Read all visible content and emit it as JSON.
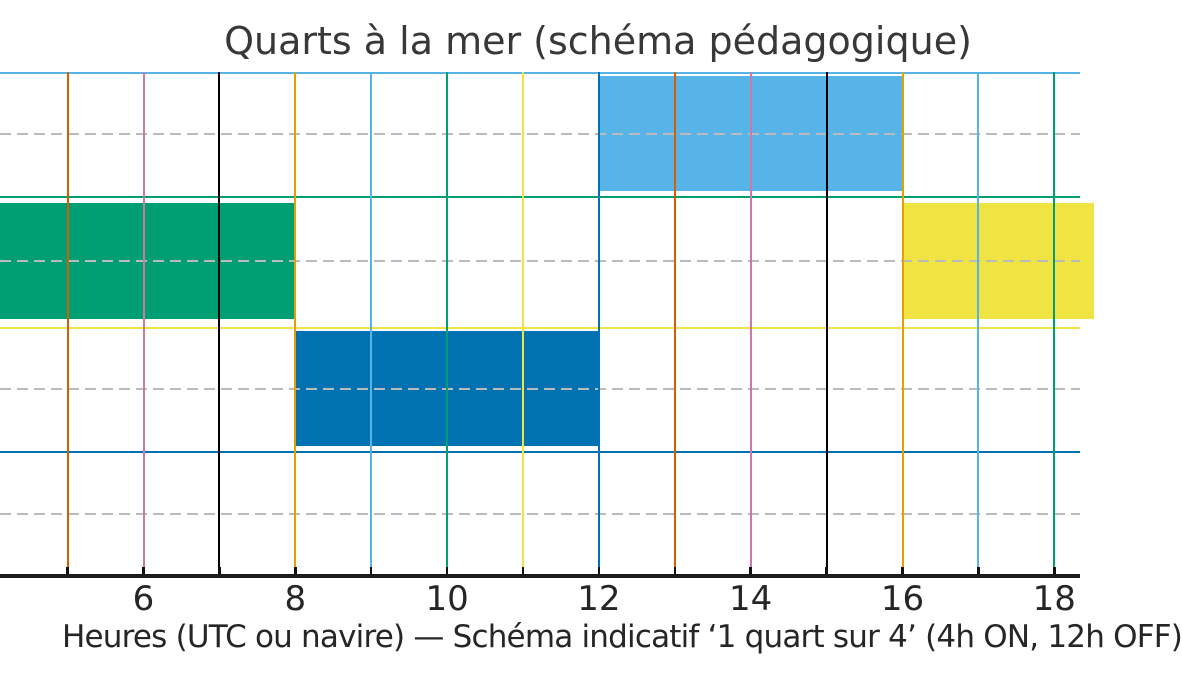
{
  "chart_data": {
    "type": "bar",
    "subtype": "gantt-broken-barh-watch-schedule",
    "title": "Quarts à la mer (schéma pédagogique)",
    "xlabel_visible": "Heures (UTC ou navire) — Schéma indicatif ‘1 quart sur 4’ (4h ON, 12h OFF)",
    "x_ticks": [
      6,
      8,
      10,
      12,
      14,
      16,
      18
    ],
    "x_visible_range_hours": [
      4.1,
      18.35
    ],
    "rows_visible": 4,
    "grid": "on",
    "legend": "none",
    "background": "#ffffff",
    "axis_color": "#1c1c1c",
    "text_color": "#262626",
    "title_color": "#383838",
    "dashed_gridline_color": "#bbbbbb",
    "bars": [
      {
        "row": 1,
        "start_hour": 12,
        "end_hour": 16,
        "color": "#56B4E9",
        "cropped_left": false,
        "cropped_right": false
      },
      {
        "row": 2,
        "start_hour": 4,
        "end_hour": 8,
        "color": "#009E73",
        "cropped_left": true,
        "cropped_right": false
      },
      {
        "row": 2,
        "start_hour": 16,
        "end_hour": 18.5,
        "color": "#F0E442",
        "cropped_left": false,
        "cropped_right": true
      },
      {
        "row": 3,
        "start_hour": 8,
        "end_hour": 12,
        "color": "#0072B2",
        "cropped_left": false,
        "cropped_right": false
      }
    ],
    "hour_gridlines": [
      {
        "hour": 5,
        "color": "#D55E00"
      },
      {
        "hour": 6,
        "color": "#CC79A7"
      },
      {
        "hour": 7,
        "color": "#000000"
      },
      {
        "hour": 8,
        "color": "#E69F00"
      },
      {
        "hour": 9,
        "color": "#56B4E9"
      },
      {
        "hour": 10,
        "color": "#009E73"
      },
      {
        "hour": 11,
        "color": "#F0E442"
      },
      {
        "hour": 12,
        "color": "#0072B2"
      },
      {
        "hour": 13,
        "color": "#D55E00"
      },
      {
        "hour": 14,
        "color": "#CC79A7"
      },
      {
        "hour": 15,
        "color": "#000000"
      },
      {
        "hour": 16,
        "color": "#E69F00"
      },
      {
        "hour": 17,
        "color": "#56B4E9"
      },
      {
        "hour": 18,
        "color": "#009E73"
      }
    ],
    "row_boundary_lines": [
      {
        "index": 1,
        "color": "#56B4E9"
      },
      {
        "index": 2,
        "color": "#009E73"
      },
      {
        "index": 3,
        "color": "#F0E442"
      },
      {
        "index": 4,
        "color": "#0072B2"
      }
    ],
    "row_center_dashed_lines": [
      1,
      2,
      3,
      4
    ]
  }
}
